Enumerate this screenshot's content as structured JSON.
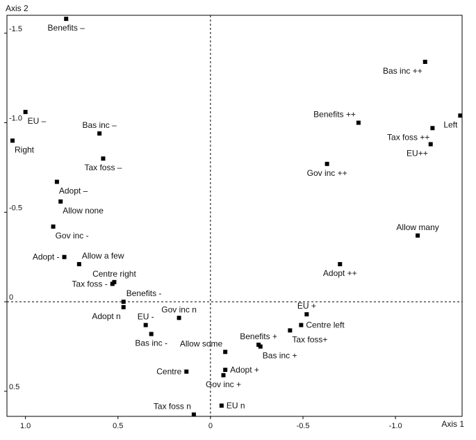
{
  "chart_data": {
    "type": "scatter",
    "title": "",
    "xlabel": "Axis 1",
    "ylabel": "Axis 2",
    "xlim": [
      1.1,
      -1.36
    ],
    "ylim": [
      -1.6,
      0.64
    ],
    "x_reversed": true,
    "y_reversed": true,
    "grid": false,
    "zero_lines": "dashed",
    "x_ticks": [
      {
        "value": 1.0,
        "label": "1.0"
      },
      {
        "value": 0.5,
        "label": "0.5"
      },
      {
        "value": 0.0,
        "label": "0"
      },
      {
        "value": -0.5,
        "label": "-0.5"
      },
      {
        "value": -1.0,
        "label": "-1.0"
      }
    ],
    "y_ticks": [
      {
        "value": -1.5,
        "label": "-1.5"
      },
      {
        "value": -1.0,
        "label": "-1.0"
      },
      {
        "value": -0.5,
        "label": "-0.5"
      },
      {
        "value": 0.0,
        "label": "0"
      },
      {
        "value": 0.5,
        "label": "0.5"
      }
    ],
    "points": [
      {
        "label": "Benefits –",
        "x": 0.78,
        "y": -1.58,
        "pos": "below"
      },
      {
        "label": "Bas inc ++",
        "x": -1.16,
        "y": -1.34,
        "pos": "below-left"
      },
      {
        "label": "EU –",
        "x": 1.0,
        "y": -1.06,
        "pos": "below-right"
      },
      {
        "label": "Benefits ++",
        "x": -0.8,
        "y": -1.0,
        "pos": "above-left"
      },
      {
        "label": "Right",
        "x": 1.07,
        "y": -0.9,
        "pos": "below-right"
      },
      {
        "label": "Bas inc –",
        "x": 0.6,
        "y": -0.94,
        "pos": "above"
      },
      {
        "label": "Tax foss –",
        "x": 0.58,
        "y": -0.8,
        "pos": "below"
      },
      {
        "label": "Left",
        "x": -1.35,
        "y": -1.04,
        "pos": "below-left"
      },
      {
        "label": "Tax foss ++",
        "x": -1.2,
        "y": -0.97,
        "pos": "below-left"
      },
      {
        "label": "EU++",
        "x": -1.19,
        "y": -0.88,
        "pos": "below-left"
      },
      {
        "label": "Gov inc ++",
        "x": -0.63,
        "y": -0.77,
        "pos": "below"
      },
      {
        "label": "Adopt –",
        "x": 0.83,
        "y": -0.67,
        "pos": "below-right"
      },
      {
        "label": "Allow none",
        "x": 0.81,
        "y": -0.56,
        "pos": "below-right"
      },
      {
        "label": "Gov inc -",
        "x": 0.85,
        "y": -0.42,
        "pos": "below-right"
      },
      {
        "label": "Allow many",
        "x": -1.12,
        "y": -0.37,
        "pos": "above"
      },
      {
        "label": "Adopt -",
        "x": 0.79,
        "y": -0.25,
        "pos": "left"
      },
      {
        "label": "Allow a few",
        "x": 0.71,
        "y": -0.21,
        "pos": "above-right"
      },
      {
        "label": "Adopt ++",
        "x": -0.7,
        "y": -0.21,
        "pos": "below"
      },
      {
        "label": "Centre right",
        "x": 0.52,
        "y": -0.11,
        "pos": "above"
      },
      {
        "label": "Tax foss -",
        "x": 0.53,
        "y": -0.1,
        "pos": "left"
      },
      {
        "label": "Benefits -",
        "x": 0.47,
        "y": 0.0,
        "pos": "above-right"
      },
      {
        "label": "Adopt n",
        "x": 0.47,
        "y": 0.03,
        "pos": "below-left"
      },
      {
        "label": "EU +",
        "x": -0.52,
        "y": 0.07,
        "pos": "above"
      },
      {
        "label": "Gov inc n",
        "x": 0.17,
        "y": 0.09,
        "pos": "above"
      },
      {
        "label": "EU -",
        "x": 0.35,
        "y": 0.13,
        "pos": "above"
      },
      {
        "label": "Centre left",
        "x": -0.49,
        "y": 0.13,
        "pos": "right"
      },
      {
        "label": "Tax foss+",
        "x": -0.43,
        "y": 0.16,
        "pos": "below-right"
      },
      {
        "label": "Bas inc -",
        "x": 0.32,
        "y": 0.18,
        "pos": "below"
      },
      {
        "label": "Benefits +",
        "x": -0.26,
        "y": 0.24,
        "pos": "above"
      },
      {
        "label": "Bas inc +",
        "x": -0.27,
        "y": 0.25,
        "pos": "below-right"
      },
      {
        "label": "Allow some",
        "x": -0.08,
        "y": 0.28,
        "pos": "above-left"
      },
      {
        "label": "Adopt +",
        "x": -0.08,
        "y": 0.38,
        "pos": "right"
      },
      {
        "label": "Gov inc +",
        "x": -0.07,
        "y": 0.41,
        "pos": "below"
      },
      {
        "label": "Centre",
        "x": 0.13,
        "y": 0.39,
        "pos": "left"
      },
      {
        "label": "Tax foss n",
        "x": 0.09,
        "y": 0.63,
        "pos": "above-left"
      },
      {
        "label": "EU n",
        "x": -0.06,
        "y": 0.58,
        "pos": "right"
      }
    ]
  }
}
